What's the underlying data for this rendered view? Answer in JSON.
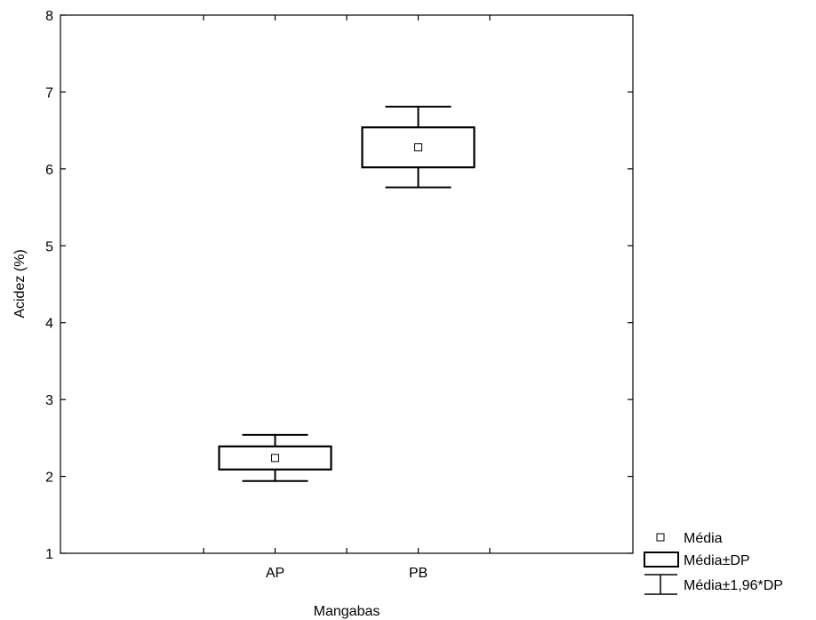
{
  "chart_data": {
    "type": "box",
    "title": "",
    "xlabel": "Mangabas",
    "ylabel": "Acidez (%)",
    "ylim": [
      1,
      8
    ],
    "yticks": [
      1,
      2,
      3,
      4,
      5,
      6,
      7,
      8
    ],
    "categories": [
      "AP",
      "PB"
    ],
    "series": [
      {
        "category": "AP",
        "mean": 2.24,
        "mean_minus_sd": 2.09,
        "mean_plus_sd": 2.39,
        "mean_minus_1_96sd": 1.94,
        "mean_plus_1_96sd": 2.54
      },
      {
        "category": "PB",
        "mean": 6.28,
        "mean_minus_sd": 6.02,
        "mean_plus_sd": 6.54,
        "mean_minus_1_96sd": 5.76,
        "mean_plus_1_96sd": 6.81
      }
    ],
    "grid": false,
    "legend": {
      "position": "bottom-right",
      "items": [
        {
          "symbol": "square-marker",
          "label": "Média"
        },
        {
          "symbol": "box",
          "label": "Média±DP"
        },
        {
          "symbol": "whisker",
          "label": "Média±1,96*DP"
        }
      ]
    },
    "colors": {
      "line": "#000000",
      "fill": "#ffffff"
    }
  }
}
